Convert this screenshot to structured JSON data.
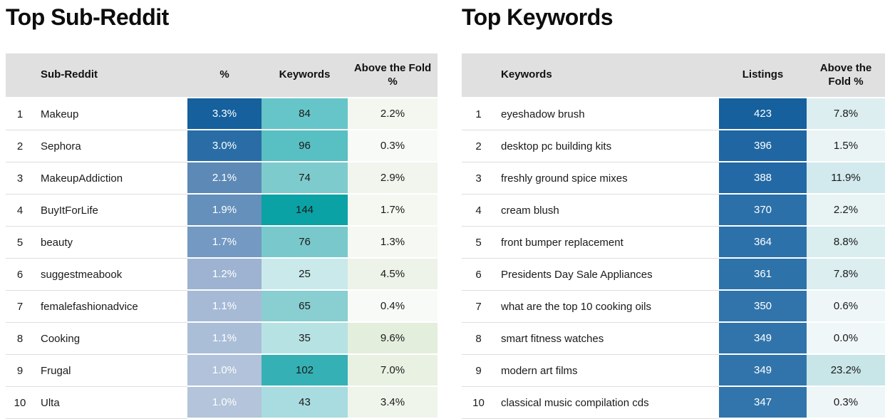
{
  "accent_colors": {
    "header_bg": "#e0e0e0",
    "row_divider": "#dedede",
    "blue_scale_max": "#15609d",
    "teal_scale_max": "#0ba2a5",
    "green_scale_max": "#e4eedd",
    "cyan_scale_max": "#c8e5e8"
  },
  "left": {
    "title": "Top Sub-Reddit",
    "headers": {
      "name": "Sub-Reddit",
      "pct": "%",
      "kw": "Keywords",
      "fold": "Above the Fold %"
    },
    "rows": [
      {
        "rank": "1",
        "name": "Makeup",
        "pct": "3.3%",
        "kw": "84",
        "fold": "2.2%",
        "pct_bg": "#15609d",
        "kw_bg": "#66c5c8",
        "fold_bg": "#f3f7f0"
      },
      {
        "rank": "2",
        "name": "Sephora",
        "pct": "3.0%",
        "kw": "96",
        "fold": "0.3%",
        "pct_bg": "#2a6da6",
        "kw_bg": "#58bfc3",
        "fold_bg": "#f8faf7"
      },
      {
        "rank": "3",
        "name": "MakeupAddiction",
        "pct": "2.1%",
        "kw": "74",
        "fold": "2.9%",
        "pct_bg": "#5d89b6",
        "kw_bg": "#7ecbcd",
        "fold_bg": "#f1f5ed"
      },
      {
        "rank": "4",
        "name": "BuyItForLife",
        "pct": "1.9%",
        "kw": "144",
        "fold": "1.7%",
        "pct_bg": "#6590bb",
        "kw_bg": "#0ba2a5",
        "fold_bg": "#f4f8f1"
      },
      {
        "rank": "5",
        "name": "beauty",
        "pct": "1.7%",
        "kw": "76",
        "fold": "1.3%",
        "pct_bg": "#7499c2",
        "kw_bg": "#79c9cc",
        "fold_bg": "#f5f8f3"
      },
      {
        "rank": "6",
        "name": "suggestmeabook",
        "pct": "1.2%",
        "kw": "25",
        "fold": "4.5%",
        "pct_bg": "#9db3d1",
        "kw_bg": "#c9e9eb",
        "fold_bg": "#edf3e8"
      },
      {
        "rank": "7",
        "name": "femalefashionadvice",
        "pct": "1.1%",
        "kw": "65",
        "fold": "0.4%",
        "pct_bg": "#a6bad6",
        "kw_bg": "#89ced0",
        "fold_bg": "#f8faf7"
      },
      {
        "rank": "8",
        "name": "Cooking",
        "pct": "1.1%",
        "kw": "35",
        "fold": "9.6%",
        "pct_bg": "#abbed8",
        "kw_bg": "#b7e2e4",
        "fold_bg": "#e4eedd"
      },
      {
        "rank": "9",
        "name": "Frugal",
        "pct": "1.0%",
        "kw": "102",
        "fold": "7.0%",
        "pct_bg": "#b1c2da",
        "kw_bg": "#35b1b5",
        "fold_bg": "#e9f1e3"
      },
      {
        "rank": "10",
        "name": "Ulta",
        "pct": "1.0%",
        "kw": "43",
        "fold": "3.4%",
        "pct_bg": "#b3c4db",
        "kw_bg": "#a8dce0",
        "fold_bg": "#f0f5ec"
      }
    ]
  },
  "right": {
    "title": "Top Keywords",
    "headers": {
      "name": "Keywords",
      "listings": "Listings",
      "fold": "Above the Fold %"
    },
    "rows": [
      {
        "rank": "1",
        "name": "eyeshadow brush",
        "listings": "423",
        "fold": "7.8%",
        "listings_bg": "#15609d",
        "fold_bg": "#dceef0"
      },
      {
        "rank": "2",
        "name": "desktop pc building kits",
        "listings": "396",
        "fold": "1.5%",
        "listings_bg": "#1f66a3",
        "fold_bg": "#eaf4f5"
      },
      {
        "rank": "3",
        "name": "freshly ground spice mixes",
        "listings": "388",
        "fold": "11.9%",
        "listings_bg": "#2369a5",
        "fold_bg": "#d2eaed"
      },
      {
        "rank": "4",
        "name": "cream blush",
        "listings": "370",
        "fold": "2.2%",
        "listings_bg": "#2b70a9",
        "fold_bg": "#e8f3f4"
      },
      {
        "rank": "5",
        "name": "front bumper replacement",
        "listings": "364",
        "fold": "8.8%",
        "listings_bg": "#2d71aa",
        "fold_bg": "#daedef"
      },
      {
        "rank": "6",
        "name": "Presidents Day Sale Appliances",
        "listings": "361",
        "fold": "7.8%",
        "listings_bg": "#2e72aa",
        "fold_bg": "#dceef0"
      },
      {
        "rank": "7",
        "name": "what are the top 10 cooking oils",
        "listings": "350",
        "fold": "0.6%",
        "listings_bg": "#3174ab",
        "fold_bg": "#eef6f7"
      },
      {
        "rank": "8",
        "name": "smart fitness watches",
        "listings": "349",
        "fold": "0.0%",
        "listings_bg": "#3174ab",
        "fold_bg": "#f0f7f8"
      },
      {
        "rank": "9",
        "name": "modern art films",
        "listings": "349",
        "fold": "23.2%",
        "listings_bg": "#3174ab",
        "fold_bg": "#c8e5e8"
      },
      {
        "rank": "10",
        "name": "classical music compilation cds",
        "listings": "347",
        "fold": "0.3%",
        "listings_bg": "#3275ac",
        "fold_bg": "#eef6f7"
      }
    ]
  }
}
